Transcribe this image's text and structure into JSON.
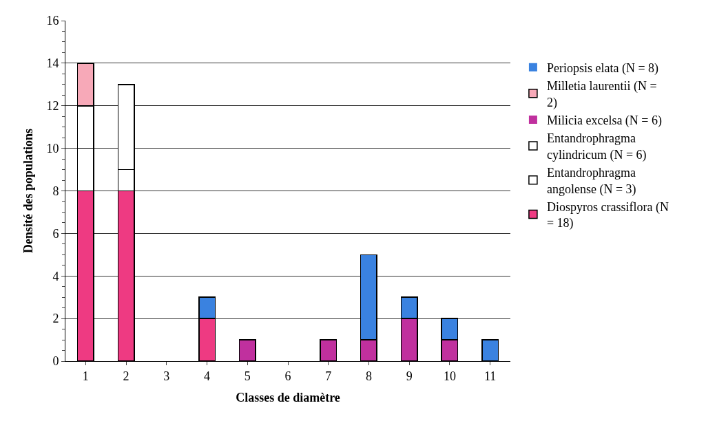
{
  "chart_data": {
    "type": "bar",
    "stacked": true,
    "xlabel": "Classes de diamètre",
    "ylabel": "Densité des populations",
    "categories": [
      "1",
      "2",
      "3",
      "4",
      "5",
      "6",
      "7",
      "8",
      "9",
      "10",
      "11"
    ],
    "series": [
      {
        "name": "Diospyros crassiflora (N = 18)",
        "color": "#ee3a82",
        "values": [
          8,
          8,
          0,
          2,
          0,
          0,
          0,
          0,
          0,
          0,
          0
        ]
      },
      {
        "name": "Entandrophragma angolense (N = 3)",
        "color": "#ffffff",
        "values": [
          2,
          1,
          0,
          0,
          0,
          0,
          0,
          0,
          0,
          0,
          0
        ]
      },
      {
        "name": "Entandrophragma cylindricum (N = 6)",
        "color": "#ffffff",
        "values": [
          2,
          4,
          0,
          0,
          0,
          0,
          0,
          0,
          0,
          0,
          0
        ]
      },
      {
        "name": "Milicia excelsa (N = 6)",
        "color": "#c0309e",
        "values": [
          0,
          0,
          0,
          0,
          1,
          0,
          1,
          1,
          2,
          1,
          0
        ]
      },
      {
        "name": "Milletia laurentii (N = 2)",
        "color": "#f7a9b8",
        "values": [
          2,
          0,
          0,
          0,
          0,
          0,
          0,
          0,
          0,
          0,
          0
        ]
      },
      {
        "name": "Periopsis elata (N = 8)",
        "color": "#3a82e0",
        "values": [
          0,
          0,
          0,
          1,
          0,
          0,
          0,
          4,
          1,
          1,
          1
        ]
      }
    ],
    "ylim": [
      0,
      16
    ],
    "yticks": [
      0,
      2,
      4,
      6,
      8,
      10,
      12,
      14,
      16
    ],
    "grid": "y",
    "legend": "right"
  }
}
